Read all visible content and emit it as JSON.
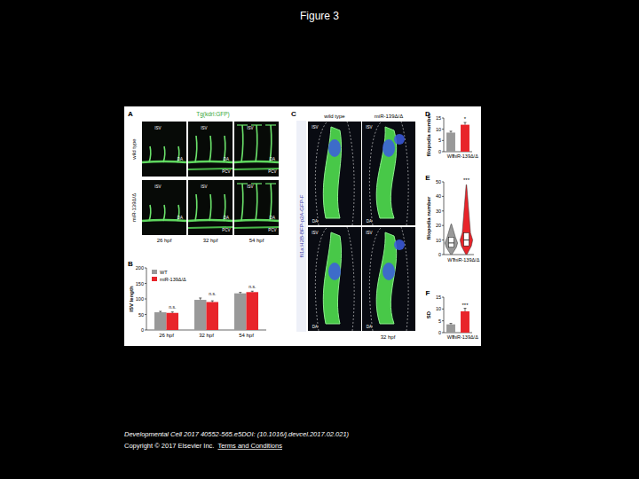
{
  "title": "Figure 3",
  "footer": {
    "citation": "Developmental Cell 2017 40552-565.e5DOI: (10.1016/j.devcel.2017.02.021)",
    "copyright": "Copyright © 2017 Elsevier Inc.",
    "terms": "Terms and Conditions"
  },
  "panel_a": {
    "panel": "A",
    "label": "Tg(kdrl:GFP)",
    "rows": [
      "wild type",
      "miR-139Δ/Δ"
    ],
    "columns": [
      "26 hpf",
      "32 hpf",
      "54 hpf"
    ],
    "vessels": [
      "ISV",
      "DA",
      "PCV"
    ]
  },
  "panel_c": {
    "panel": "C",
    "label": "fli1a:H2B-BFP-p2A-GFP-F",
    "columns": [
      "wild type",
      "miR-139Δ/Δ"
    ],
    "time": "32 hpf",
    "vessels": [
      "ISV",
      "DA"
    ]
  },
  "chart_data": [
    {
      "panel": "B",
      "type": "bar",
      "y_label": "ISV length",
      "categories": [
        "26 hpf",
        "32 hpf",
        "54 hpf"
      ],
      "series": [
        {
          "name": "WT",
          "color": "#999999",
          "values": [
            57,
            97,
            118
          ],
          "errors": [
            3,
            6,
            3
          ]
        },
        {
          "name": "miR-139Δ/Δ",
          "color": "#e8242a",
          "values": [
            55,
            90,
            122
          ],
          "errors": [
            3,
            4,
            3
          ]
        }
      ],
      "annotations": [
        "n.s.",
        "n.s.",
        "n.s."
      ],
      "ylim": [
        0,
        200
      ],
      "yticks": [
        0,
        50,
        100,
        150,
        200
      ],
      "legend": "top-left"
    },
    {
      "panel": "D",
      "type": "bar",
      "y_label": "filopodia number",
      "categories": [
        "WT",
        "miR-139Δ/Δ"
      ],
      "values": [
        8.5,
        12
      ],
      "errors": [
        0.6,
        1
      ],
      "colors": [
        "#999999",
        "#e8242a"
      ],
      "annotation": "*",
      "ylim": [
        0,
        15
      ],
      "yticks": [
        0,
        5,
        10,
        15
      ]
    },
    {
      "panel": "E",
      "type": "violin",
      "y_label": "filopodia number",
      "series": [
        {
          "name": "WT",
          "color": "#999999",
          "min": 0,
          "q1": 5,
          "median": 8,
          "q3": 12,
          "max": 21
        },
        {
          "name": "miR-139Δ/Δ",
          "color": "#e8242a",
          "min": 0,
          "q1": 6,
          "median": 10,
          "q3": 15,
          "max": 48
        }
      ],
      "annotation": "***",
      "ylim": [
        0,
        50
      ],
      "yticks": [
        0,
        10,
        20,
        30,
        40,
        50
      ]
    },
    {
      "panel": "F",
      "type": "bar",
      "y_label": "SD",
      "categories": [
        "WT",
        "miR-139Δ/Δ"
      ],
      "values": [
        3.5,
        9
      ],
      "errors": [
        0.4,
        1.3
      ],
      "colors": [
        "#999999",
        "#e8242a"
      ],
      "annotation": "***",
      "ylim": [
        0,
        15
      ],
      "yticks": [
        0,
        5,
        10,
        15
      ]
    }
  ]
}
